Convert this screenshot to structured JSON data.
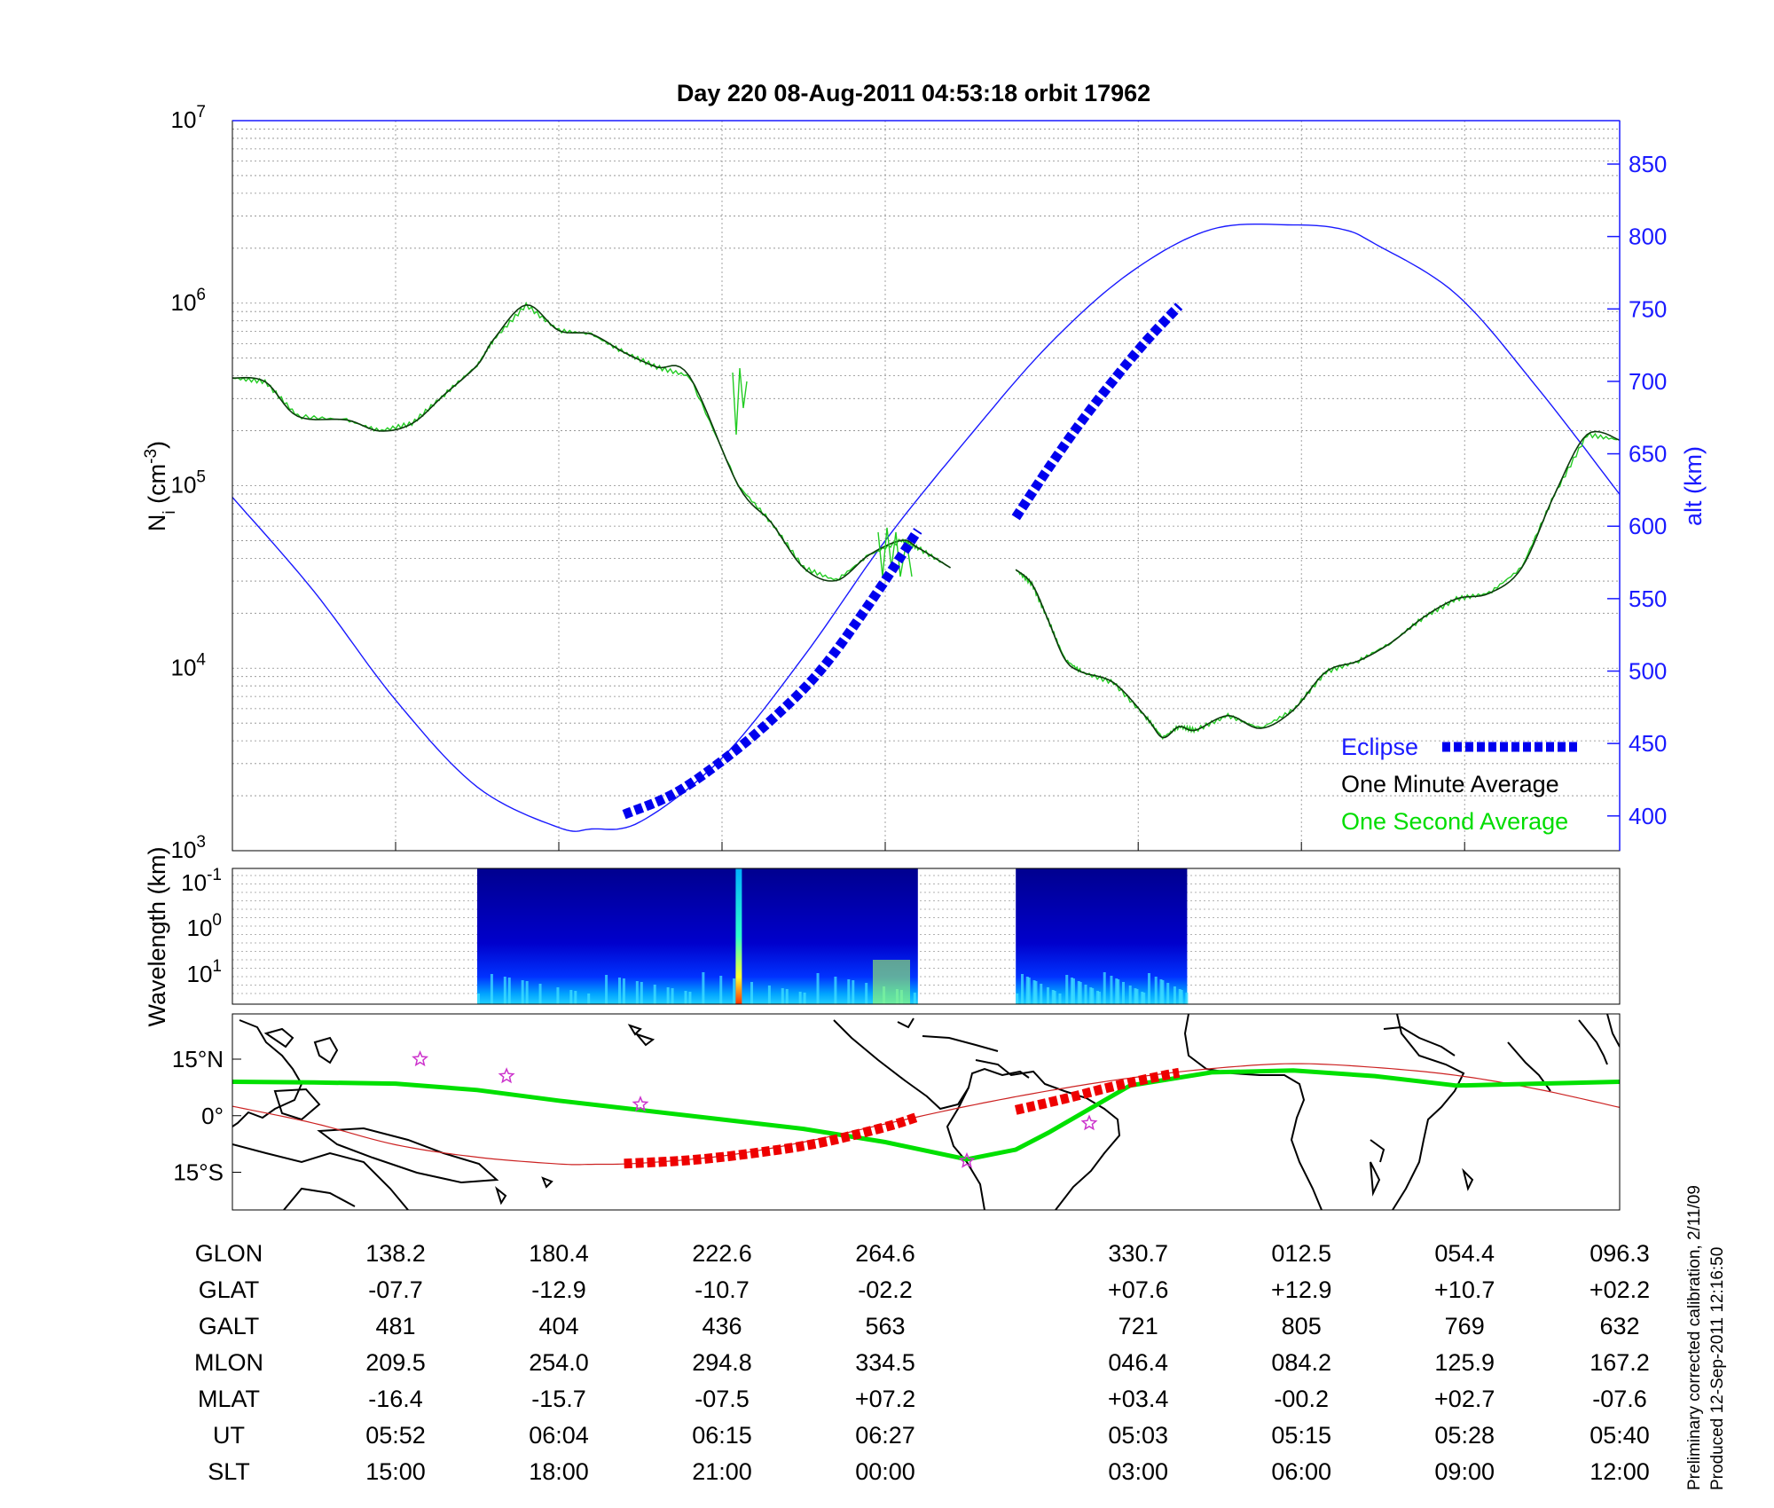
{
  "title": "Day 220  08-Aug-2011 04:53:18   orbit 17962",
  "colors": {
    "altitude": "#1a1aff",
    "eclipse": "#0000ee",
    "minute_avg": "#000000",
    "second_avg": "#00dd00",
    "track": "#00e000",
    "track_eclipse": "#ee0000",
    "orbit_line": "#cc2222",
    "station": "#cc33cc"
  },
  "chart_data": [
    {
      "type": "line",
      "name": "density",
      "xlabel": "",
      "ylabel": "Ni (cm-3)",
      "ylabel_main": "N",
      "ylabel_sub": "i",
      "ylabel_rest": " (cm",
      "ylabel_sup": "-3",
      "ylabel_end": ")",
      "ylim_log10": [
        3,
        7
      ],
      "y_tick_labels": [
        {
          "base": "10",
          "exp": "3",
          "log10": 3
        },
        {
          "base": "10",
          "exp": "4",
          "log10": 4
        },
        {
          "base": "10",
          "exp": "5",
          "log10": 5
        },
        {
          "base": "10",
          "exp": "6",
          "log10": 6
        },
        {
          "base": "10",
          "exp": "7",
          "log10": 7
        }
      ],
      "y2label": "alt (km)",
      "y2lim": [
        376,
        880
      ],
      "y2_ticks": [
        400,
        450,
        500,
        550,
        600,
        650,
        700,
        750,
        800,
        850
      ],
      "x_range": [
        0,
        8.5
      ],
      "grid": true,
      "legend_position": "bottom-right",
      "legend": [
        {
          "label": "Eclipse",
          "color": "#1a1aff"
        },
        {
          "label": "One Minute Average",
          "color": "#000000"
        },
        {
          "label": "One Second Average",
          "color": "#00dd00"
        }
      ],
      "series": [
        {
          "key": "density_seg1",
          "x": [
            0,
            0.2,
            0.4,
            0.7,
            0.9,
            1.1,
            1.3,
            1.5,
            1.6,
            1.8,
            2.0,
            2.2,
            2.4,
            2.6,
            2.8,
            3.1,
            3.3,
            3.5,
            3.7,
            3.9,
            4.1,
            4.2,
            4.4
          ],
          "log10": [
            5.59,
            5.57,
            5.38,
            5.36,
            5.3,
            5.34,
            5.5,
            5.66,
            5.8,
            5.99,
            5.85,
            5.83,
            5.73,
            5.65,
            5.6,
            5.0,
            4.8,
            4.55,
            4.48,
            4.62,
            4.7,
            4.66,
            4.55
          ]
        },
        {
          "key": "density_seg2",
          "x": [
            4.8,
            4.9,
            5.0,
            5.1,
            5.2,
            5.4,
            5.6,
            5.7,
            5.8,
            5.9,
            6.1,
            6.3,
            6.5,
            6.7,
            6.9,
            7.1,
            7.3,
            7.5,
            7.7,
            7.9,
            8.1,
            8.3,
            8.5
          ],
          "log10": [
            4.54,
            4.46,
            4.26,
            4.05,
            3.98,
            3.92,
            3.73,
            3.62,
            3.68,
            3.66,
            3.74,
            3.67,
            3.77,
            3.98,
            4.04,
            4.14,
            4.28,
            4.38,
            4.41,
            4.55,
            4.95,
            5.28,
            5.25
          ]
        },
        {
          "key": "altitude",
          "x": [
            0,
            0.5,
            1.0,
            1.5,
            2.0,
            2.2,
            2.5,
            3.0,
            3.5,
            4.0,
            4.5,
            5.0,
            5.5,
            6.0,
            6.5,
            6.8,
            7.0,
            7.5,
            8.0,
            8.5
          ],
          "alt": [
            620,
            555,
            480,
            420,
            392,
            391,
            396,
            440,
            510,
            590,
            660,
            725,
            775,
            805,
            808,
            805,
            795,
            760,
            695,
            622
          ]
        },
        {
          "key": "eclipse_seg1",
          "x": [
            2.4,
            2.7,
            3.0,
            3.3,
            3.6,
            3.9,
            4.2
          ],
          "alt": [
            401,
            415,
            438,
            466,
            500,
            546,
            597
          ]
        },
        {
          "key": "eclipse_seg2",
          "x": [
            4.8,
            5.0,
            5.2,
            5.4,
            5.6,
            5.8
          ],
          "alt": [
            606,
            640,
            672,
            701,
            728,
            752
          ]
        }
      ]
    },
    {
      "type": "heatmap",
      "name": "spectrogram",
      "ylabel": "Wavelength (km)",
      "y_tick_labels": [
        {
          "base": "10",
          "exp": "-1"
        },
        {
          "base": "10",
          "exp": "0"
        },
        {
          "base": "10",
          "exp": "1"
        }
      ],
      "data_blocks": [
        {
          "x_start": 1.5,
          "x_end": 4.2
        },
        {
          "x_start": 4.8,
          "x_end": 5.85
        }
      ],
      "colormap": "jet",
      "bright_stripe_x": 3.1
    },
    {
      "type": "line",
      "name": "map",
      "y_tick_labels": [
        "15°N",
        "0°",
        "15°S"
      ],
      "y_ticks_deg": [
        15,
        0,
        -15
      ],
      "ylim_deg": [
        -25,
        27
      ],
      "series": [
        {
          "key": "magnetic_equator_track",
          "x": [
            0,
            0.5,
            1.0,
            1.5,
            2.0,
            2.5,
            3.0,
            3.5,
            4.0,
            4.5,
            4.8,
            5.0,
            5.5,
            6.0,
            6.5,
            7.0,
            7.5,
            8.0,
            8.5
          ],
          "lat": [
            9,
            8.8,
            8.5,
            6.8,
            4.0,
            1.5,
            -1.0,
            -3.5,
            -7.0,
            -11.6,
            -9.0,
            -4.5,
            8.0,
            11.5,
            12.0,
            10.5,
            8.0,
            8.5,
            9.0
          ]
        },
        {
          "key": "orbit_track",
          "x": [
            0,
            0.5,
            1.0,
            1.5,
            2.0,
            2.2,
            2.5,
            3.0,
            3.5,
            4.0,
            4.5,
            5.0,
            5.5,
            6.0,
            6.5,
            7.0,
            7.5,
            8.0,
            8.5
          ],
          "lat": [
            2.5,
            -2.0,
            -7.7,
            -11.0,
            -12.8,
            -12.9,
            -12.6,
            -10.7,
            -7.0,
            -2.2,
            2.5,
            6.6,
            10.0,
            12.5,
            13.8,
            12.8,
            10.7,
            7.0,
            2.2
          ]
        },
        {
          "key": "track_eclipse_seg1",
          "x": [
            2.4,
            2.8,
            3.2,
            3.6,
            4.0,
            4.2
          ],
          "lat": [
            -12.7,
            -11.8,
            -9.9,
            -7.2,
            -3.0,
            -0.3
          ]
        },
        {
          "key": "track_eclipse_seg2",
          "x": [
            4.8,
            5.1,
            5.4,
            5.7,
            5.8
          ],
          "lat": [
            1.5,
            4.5,
            7.8,
            10.6,
            11.4
          ]
        }
      ],
      "stations": [
        {
          "x": 1.15,
          "lat": 15.0
        },
        {
          "x": 1.68,
          "lat": 10.5
        },
        {
          "x": 2.5,
          "lat": 3.0
        },
        {
          "x": 4.5,
          "lat": -12.0
        },
        {
          "x": 5.25,
          "lat": -2.0
        }
      ]
    }
  ],
  "table": {
    "row_labels": [
      "GLON",
      "GLAT",
      "GALT",
      "MLON",
      "MLAT",
      "UT",
      "SLT"
    ],
    "columns": [
      {
        "x": 1,
        "values": [
          "138.2",
          "-07.7",
          "481",
          "209.5",
          "-16.4",
          "05:52",
          "15:00"
        ]
      },
      {
        "x": 2,
        "values": [
          "180.4",
          "-12.9",
          "404",
          "254.0",
          "-15.7",
          "06:04",
          "18:00"
        ]
      },
      {
        "x": 3,
        "values": [
          "222.6",
          "-10.7",
          "436",
          "294.8",
          "-07.5",
          "06:15",
          "21:00"
        ]
      },
      {
        "x": 4,
        "values": [
          "264.6",
          "-02.2",
          "563",
          "334.5",
          "+07.2",
          "06:27",
          "00:00"
        ]
      },
      {
        "x": 5.55,
        "values": [
          "330.7",
          "+07.6",
          "721",
          "046.4",
          "+03.4",
          "05:03",
          "03:00"
        ]
      },
      {
        "x": 6.55,
        "values": [
          "012.5",
          "+12.9",
          "805",
          "084.2",
          "-00.2",
          "05:15",
          "06:00"
        ]
      },
      {
        "x": 7.55,
        "values": [
          "054.4",
          "+10.7",
          "769",
          "125.9",
          "+02.7",
          "05:28",
          "09:00"
        ]
      },
      {
        "x": 8.5,
        "values": [
          "096.3",
          "+02.2",
          "632",
          "167.2",
          "-07.6",
          "05:40",
          "12:00"
        ]
      }
    ]
  },
  "footnote": {
    "line1": "Preliminary corrected calibration, 2/11/09",
    "line2": "Produced 12-Sep-2011 12:16:50"
  }
}
